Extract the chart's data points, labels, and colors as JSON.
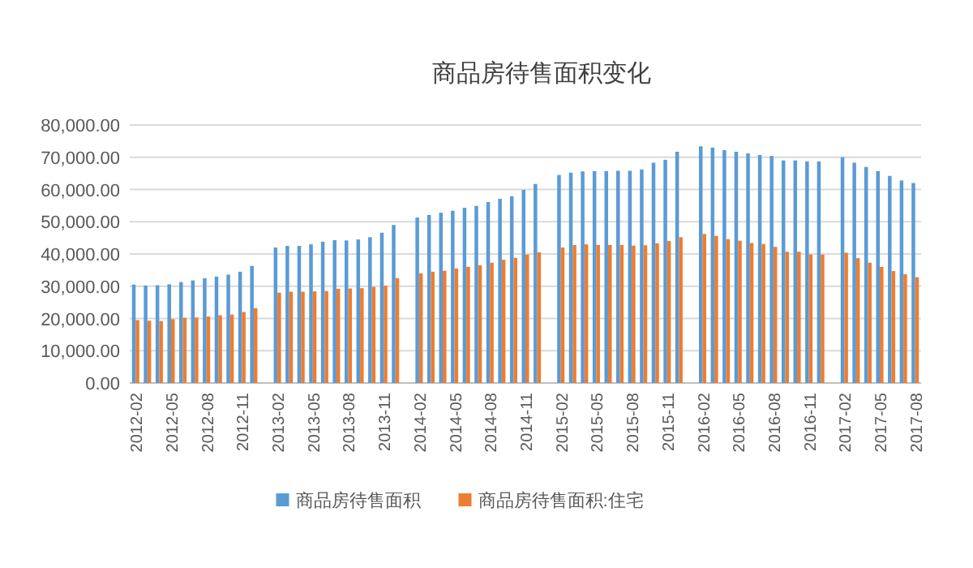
{
  "chart_data": {
    "type": "bar",
    "title": "商品房待售面积变化",
    "categories": [
      "2012-02",
      null,
      null,
      "2012-05",
      null,
      null,
      "2012-08",
      null,
      null,
      "2012-11",
      null,
      null,
      "2013-02",
      null,
      null,
      "2013-05",
      null,
      null,
      "2013-08",
      null,
      null,
      "2013-11",
      null,
      null,
      "2014-02",
      null,
      null,
      "2014-05",
      null,
      null,
      "2014-08",
      null,
      null,
      "2014-11",
      null,
      null,
      "2015-02",
      null,
      null,
      "2015-05",
      null,
      null,
      "2015-08",
      null,
      null,
      "2015-11",
      null,
      null,
      "2016-02",
      null,
      null,
      "2016-05",
      null,
      null,
      "2016-08",
      null,
      null,
      "2016-11",
      null,
      null,
      "2017-02",
      null,
      null,
      "2017-05",
      null,
      null,
      "2017-08"
    ],
    "series": [
      {
        "name": "商品房待售面积",
        "color": "#5b9bd5",
        "values": [
          30500,
          30200,
          30300,
          30600,
          31300,
          31800,
          32500,
          33000,
          33600,
          34500,
          36300,
          null,
          42000,
          42500,
          42500,
          43000,
          43800,
          44300,
          44200,
          44500,
          45200,
          46600,
          49000,
          null,
          51300,
          52100,
          52800,
          53400,
          54300,
          54900,
          56100,
          57100,
          57900,
          59900,
          61700,
          null,
          64500,
          65200,
          65600,
          65700,
          65700,
          65800,
          65800,
          66200,
          68300,
          69200,
          71700,
          null,
          73400,
          73000,
          72200,
          71700,
          71200,
          70700,
          70400,
          69000,
          69000,
          68700,
          68700,
          null,
          70000,
          68300,
          67000,
          65700,
          64200,
          62800,
          62000
        ]
      },
      {
        "name": "商品房待售面积:住宅",
        "color": "#ed7d31",
        "values": [
          19500,
          19300,
          19200,
          19800,
          20200,
          20300,
          20600,
          21000,
          21200,
          22000,
          23200,
          null,
          28000,
          28300,
          28300,
          28400,
          28500,
          29200,
          29300,
          29400,
          29800,
          30200,
          32500,
          null,
          34000,
          34500,
          34800,
          35500,
          36000,
          36500,
          37300,
          38200,
          38800,
          39800,
          40500,
          null,
          42000,
          42800,
          43000,
          42800,
          42800,
          42800,
          42600,
          42700,
          43300,
          44000,
          45200,
          null,
          46200,
          45600,
          44600,
          44100,
          43400,
          43100,
          42200,
          40700,
          40700,
          39800,
          39800,
          null,
          40400,
          38700,
          37300,
          36000,
          34700,
          33700,
          32800
        ]
      }
    ],
    "ylim": [
      0,
      80000
    ],
    "yticks": [
      {
        "value": 0,
        "label": "0.00"
      },
      {
        "value": 10000,
        "label": "10,000.00"
      },
      {
        "value": 20000,
        "label": "20,000.00"
      },
      {
        "value": 30000,
        "label": "30,000.00"
      },
      {
        "value": 40000,
        "label": "40,000.00"
      },
      {
        "value": 50000,
        "label": "50,000.00"
      },
      {
        "value": 60000,
        "label": "60,000.00"
      },
      {
        "value": 70000,
        "label": "70,000.00"
      },
      {
        "value": 80000,
        "label": "80,000.00"
      }
    ],
    "grid": "y",
    "legend": "bottom"
  }
}
